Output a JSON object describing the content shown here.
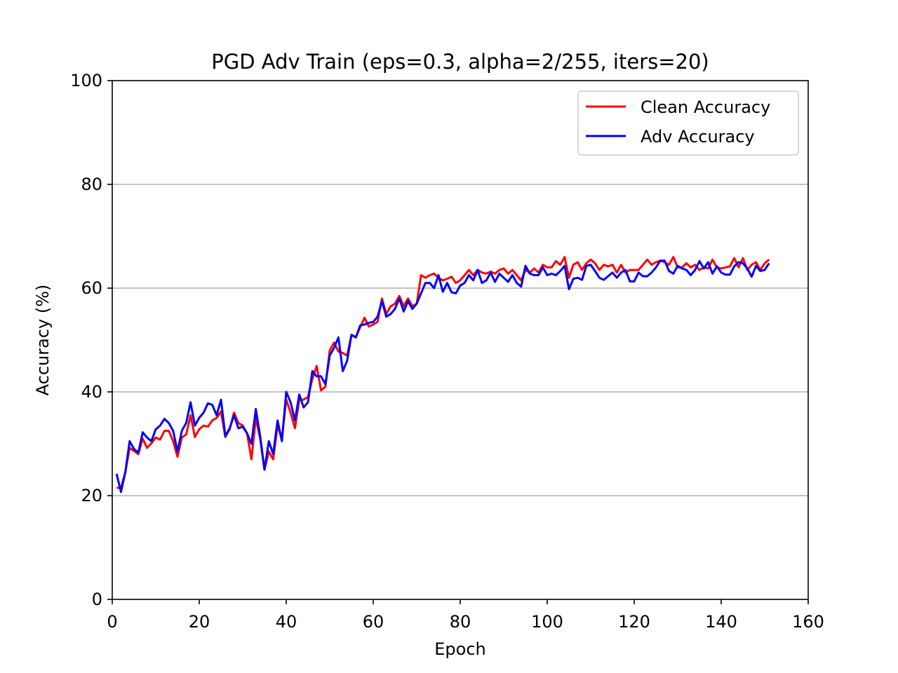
{
  "colors": {
    "clean": "#ff0000",
    "adv": "#0000ff",
    "grid": "#b0b0b0",
    "axis": "#000000"
  },
  "chart_data": {
    "type": "line",
    "title": "PGD Adv Train (eps=0.3, alpha=2/255, iters=20)",
    "xlabel": "Epoch",
    "ylabel": "Accuracy (%)",
    "xlim": [
      0,
      160
    ],
    "ylim": [
      0,
      100
    ],
    "xticks": [
      0,
      20,
      40,
      60,
      80,
      100,
      120,
      140,
      160
    ],
    "yticks": [
      0,
      20,
      40,
      60,
      80,
      100
    ],
    "grid": "horizontal",
    "legend_position": "upper right",
    "x_start": 1,
    "series": [
      {
        "name": "Clean Accuracy",
        "color": "#ff0000",
        "values": [
          21.5,
          21.5,
          24.5,
          29.2,
          28.6,
          28.0,
          31.0,
          29.2,
          30.1,
          31.2,
          30.8,
          32.5,
          32.5,
          30.5,
          27.5,
          31.2,
          31.8,
          35.5,
          31.3,
          32.8,
          33.5,
          33.3,
          34.5,
          35.0,
          36.2,
          31.3,
          32.8,
          36.0,
          34.0,
          33.5,
          32.0,
          27.0,
          35.0,
          31.0,
          25.0,
          28.5,
          27.0,
          33.5,
          31.0,
          38.5,
          36.0,
          33.0,
          38.5,
          38.5,
          39.0,
          42.5,
          45.0,
          40.3,
          41.0,
          48.0,
          49.5,
          47.8,
          47.5,
          47.0,
          51.0,
          50.5,
          52.5,
          54.3,
          52.6,
          53.0,
          53.5,
          58.0,
          55.0,
          56.5,
          57.0,
          58.5,
          56.5,
          58.0,
          56.5,
          57.0,
          62.5,
          62.0,
          62.5,
          62.8,
          62.0,
          61.5,
          61.8,
          62.2,
          61.0,
          61.5,
          62.5,
          63.5,
          62.5,
          63.5,
          63.0,
          62.8,
          63.2,
          62.8,
          63.5,
          63.8,
          62.8,
          63.5,
          62.5,
          61.5,
          63.5,
          63.0,
          63.8,
          63.0,
          64.5,
          64.0,
          64.0,
          65.2,
          64.5,
          66.0,
          62.0,
          64.5,
          65.0,
          63.5,
          64.8,
          65.5,
          64.8,
          63.5,
          64.5,
          64.2,
          64.5,
          63.0,
          64.5,
          63.0,
          63.5,
          63.5,
          63.5,
          64.5,
          65.5,
          64.5,
          65.0,
          65.3,
          65.0,
          64.5,
          66.0,
          64.0,
          64.0,
          64.8,
          64.0,
          64.5,
          63.5,
          64.0,
          63.8,
          65.5,
          64.0,
          63.8,
          64.0,
          64.2,
          65.8,
          64.0,
          65.8,
          63.5,
          64.5,
          65.0,
          63.5,
          64.8,
          65.5
        ]
      },
      {
        "name": "Adv Accuracy",
        "color": "#0000ff",
        "values": [
          24.2,
          20.7,
          24.5,
          30.5,
          29.0,
          28.3,
          32.2,
          31.2,
          30.5,
          32.8,
          33.5,
          34.8,
          34.0,
          32.5,
          28.5,
          32.5,
          34.0,
          38.0,
          33.5,
          35.0,
          36.0,
          37.8,
          37.5,
          35.5,
          38.5,
          31.5,
          33.0,
          35.5,
          33.0,
          33.3,
          32.0,
          30.0,
          36.7,
          31.5,
          25.0,
          30.5,
          28.0,
          34.5,
          30.5,
          40.0,
          38.0,
          34.5,
          39.5,
          37.0,
          38.0,
          44.0,
          43.0,
          43.0,
          41.5,
          47.0,
          48.5,
          50.5,
          44.0,
          46.0,
          51.0,
          50.5,
          52.8,
          53.0,
          53.3,
          53.5,
          54.5,
          57.5,
          54.5,
          55.0,
          56.0,
          58.0,
          55.5,
          57.5,
          56.0,
          57.0,
          59.0,
          61.0,
          61.0,
          60.0,
          62.5,
          59.3,
          61.0,
          59.2,
          59.0,
          60.5,
          61.0,
          62.5,
          61.5,
          63.5,
          61.0,
          61.5,
          63.0,
          61.2,
          62.8,
          62.0,
          61.2,
          62.5,
          61.0,
          60.3,
          64.3,
          62.8,
          62.5,
          62.5,
          64.0,
          62.5,
          62.8,
          62.5,
          63.3,
          64.3,
          59.8,
          61.8,
          62.0,
          61.6,
          64.3,
          64.5,
          63.3,
          62.0,
          61.6,
          62.3,
          63.0,
          62.0,
          63.0,
          63.5,
          61.3,
          61.3,
          63.0,
          62.3,
          62.3,
          63.0,
          64.0,
          65.3,
          65.3,
          63.3,
          62.8,
          64.3,
          63.8,
          63.5,
          62.5,
          63.5,
          65.2,
          63.8,
          65.0,
          62.8,
          64.2,
          63.0,
          62.6,
          62.6,
          64.2,
          65.0,
          64.8,
          63.8,
          62.2,
          64.3,
          63.3,
          63.5,
          64.8
        ]
      }
    ]
  }
}
